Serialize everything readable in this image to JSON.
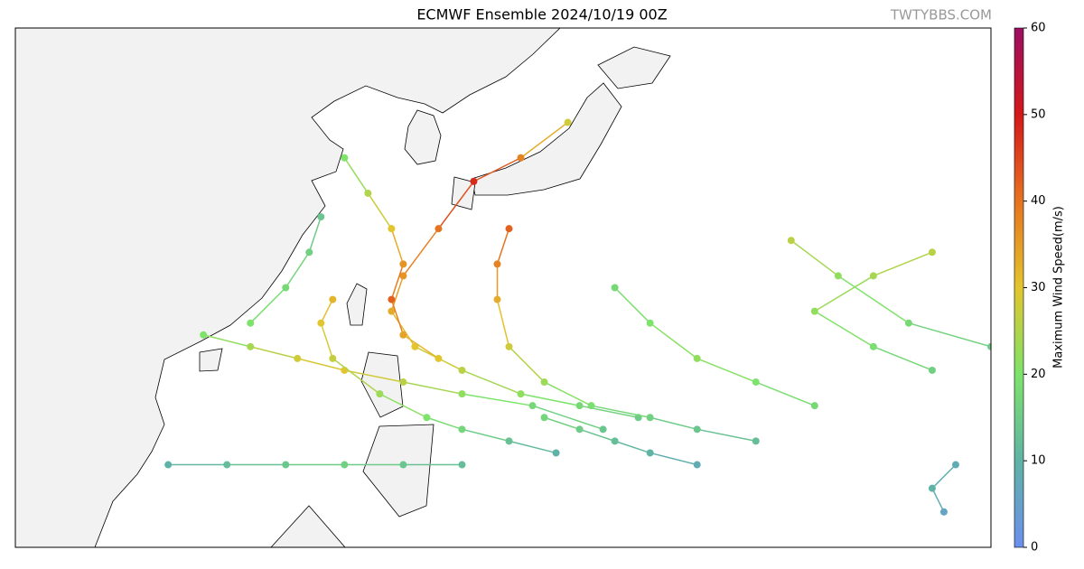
{
  "map": {
    "title": "ECMWF Ensemble 2024/10/19 00Z",
    "watermark": "TWTYBBS.COM",
    "lon_range": [
      92,
      175
    ],
    "lat_range": [
      3,
      47
    ],
    "colorbar": {
      "label": "Maximum Wind Speed(m/s)",
      "lim": [
        0,
        60
      ],
      "ticks": [
        0,
        10,
        20,
        30,
        40,
        50,
        60
      ],
      "colors": [
        "#6b8fee",
        "#5fb3a6",
        "#7de36a",
        "#e3c52e",
        "#e67320",
        "#d4181a",
        "#9b0f62"
      ]
    },
    "tracks": [
      {
        "points": [
          {
            "lon": 145,
            "lat": 14,
            "wind": 15
          },
          {
            "lon": 140,
            "lat": 15,
            "wind": 18
          },
          {
            "lon": 135,
            "lat": 16,
            "wind": 22
          },
          {
            "lon": 130,
            "lat": 18,
            "wind": 26
          },
          {
            "lon": 126,
            "lat": 20,
            "wind": 30
          },
          {
            "lon": 124,
            "lat": 23,
            "wind": 33
          },
          {
            "lon": 125,
            "lat": 26,
            "wind": 36
          },
          {
            "lon": 128,
            "lat": 30,
            "wind": 40
          },
          {
            "lon": 131,
            "lat": 34,
            "wind": 48
          },
          {
            "lon": 135,
            "lat": 36,
            "wind": 38
          },
          {
            "lon": 139,
            "lat": 39,
            "wind": 28
          }
        ]
      },
      {
        "points": [
          {
            "lon": 142,
            "lat": 13,
            "wind": 14
          },
          {
            "lon": 136,
            "lat": 15,
            "wind": 18
          },
          {
            "lon": 130,
            "lat": 16,
            "wind": 22
          },
          {
            "lon": 125,
            "lat": 17,
            "wind": 26
          },
          {
            "lon": 120,
            "lat": 18,
            "wind": 30
          },
          {
            "lon": 116,
            "lat": 19,
            "wind": 28
          },
          {
            "lon": 112,
            "lat": 20,
            "wind": 24
          },
          {
            "lon": 108,
            "lat": 21,
            "wind": 20
          }
        ]
      },
      {
        "points": [
          {
            "lon": 155,
            "lat": 12,
            "wind": 12
          },
          {
            "lon": 150,
            "lat": 13,
            "wind": 14
          },
          {
            "lon": 146,
            "lat": 14,
            "wind": 16
          },
          {
            "lon": 141,
            "lat": 15,
            "wind": 19
          },
          {
            "lon": 137,
            "lat": 17,
            "wind": 23
          },
          {
            "lon": 134,
            "lat": 20,
            "wind": 28
          },
          {
            "lon": 133,
            "lat": 24,
            "wind": 33
          },
          {
            "lon": 133,
            "lat": 27,
            "wind": 38
          },
          {
            "lon": 134,
            "lat": 30,
            "wind": 42
          }
        ]
      },
      {
        "points": [
          {
            "lon": 160,
            "lat": 15,
            "wind": 18
          },
          {
            "lon": 155,
            "lat": 17,
            "wind": 20
          },
          {
            "lon": 150,
            "lat": 19,
            "wind": 22
          },
          {
            "lon": 146,
            "lat": 22,
            "wind": 20
          },
          {
            "lon": 143,
            "lat": 25,
            "wind": 18
          }
        ]
      },
      {
        "points": [
          {
            "lon": 170,
            "lat": 18,
            "wind": 16
          },
          {
            "lon": 165,
            "lat": 20,
            "wind": 19
          },
          {
            "lon": 160,
            "lat": 23,
            "wind": 22
          },
          {
            "lon": 165,
            "lat": 26,
            "wind": 24
          },
          {
            "lon": 170,
            "lat": 28,
            "wind": 26
          }
        ]
      },
      {
        "points": [
          {
            "lon": 130,
            "lat": 10,
            "wind": 12
          },
          {
            "lon": 125,
            "lat": 10,
            "wind": 14
          },
          {
            "lon": 120,
            "lat": 10,
            "wind": 16
          },
          {
            "lon": 115,
            "lat": 10,
            "wind": 14
          },
          {
            "lon": 110,
            "lat": 10,
            "wind": 12
          },
          {
            "lon": 105,
            "lat": 10,
            "wind": 10
          }
        ]
      },
      {
        "points": [
          {
            "lon": 138,
            "lat": 11,
            "wind": 10
          },
          {
            "lon": 134,
            "lat": 12,
            "wind": 13
          },
          {
            "lon": 130,
            "lat": 13,
            "wind": 17
          },
          {
            "lon": 127,
            "lat": 14,
            "wind": 20
          },
          {
            "lon": 123,
            "lat": 16,
            "wind": 23
          },
          {
            "lon": 119,
            "lat": 19,
            "wind": 27
          },
          {
            "lon": 118,
            "lat": 22,
            "wind": 30
          },
          {
            "lon": 119,
            "lat": 24,
            "wind": 32
          }
        ]
      },
      {
        "points": [
          {
            "lon": 150,
            "lat": 10,
            "wind": 8
          },
          {
            "lon": 146,
            "lat": 11,
            "wind": 10
          },
          {
            "lon": 143,
            "lat": 12,
            "wind": 12
          },
          {
            "lon": 140,
            "lat": 13,
            "wind": 15
          },
          {
            "lon": 137,
            "lat": 14,
            "wind": 17
          }
        ]
      },
      {
        "points": [
          {
            "lon": 128,
            "lat": 19,
            "wind": 30
          },
          {
            "lon": 125,
            "lat": 21,
            "wind": 34
          },
          {
            "lon": 124,
            "lat": 24,
            "wind": 42
          },
          {
            "lon": 125,
            "lat": 27,
            "wind": 36
          },
          {
            "lon": 124,
            "lat": 30,
            "wind": 30
          },
          {
            "lon": 122,
            "lat": 33,
            "wind": 25
          },
          {
            "lon": 120,
            "lat": 36,
            "wind": 20
          }
        ]
      },
      {
        "points": [
          {
            "lon": 112,
            "lat": 22,
            "wind": 20
          },
          {
            "lon": 115,
            "lat": 25,
            "wind": 18
          },
          {
            "lon": 117,
            "lat": 28,
            "wind": 16
          },
          {
            "lon": 118,
            "lat": 31,
            "wind": 14
          }
        ]
      },
      {
        "points": [
          {
            "lon": 175,
            "lat": 20,
            "wind": 15
          },
          {
            "lon": 168,
            "lat": 22,
            "wind": 18
          },
          {
            "lon": 162,
            "lat": 26,
            "wind": 22
          },
          {
            "lon": 158,
            "lat": 29,
            "wind": 26
          }
        ]
      },
      {
        "points": [
          {
            "lon": 172,
            "lat": 10,
            "wind": 8
          },
          {
            "lon": 170,
            "lat": 8,
            "wind": 10
          },
          {
            "lon": 171,
            "lat": 6,
            "wind": 6
          }
        ]
      }
    ]
  }
}
